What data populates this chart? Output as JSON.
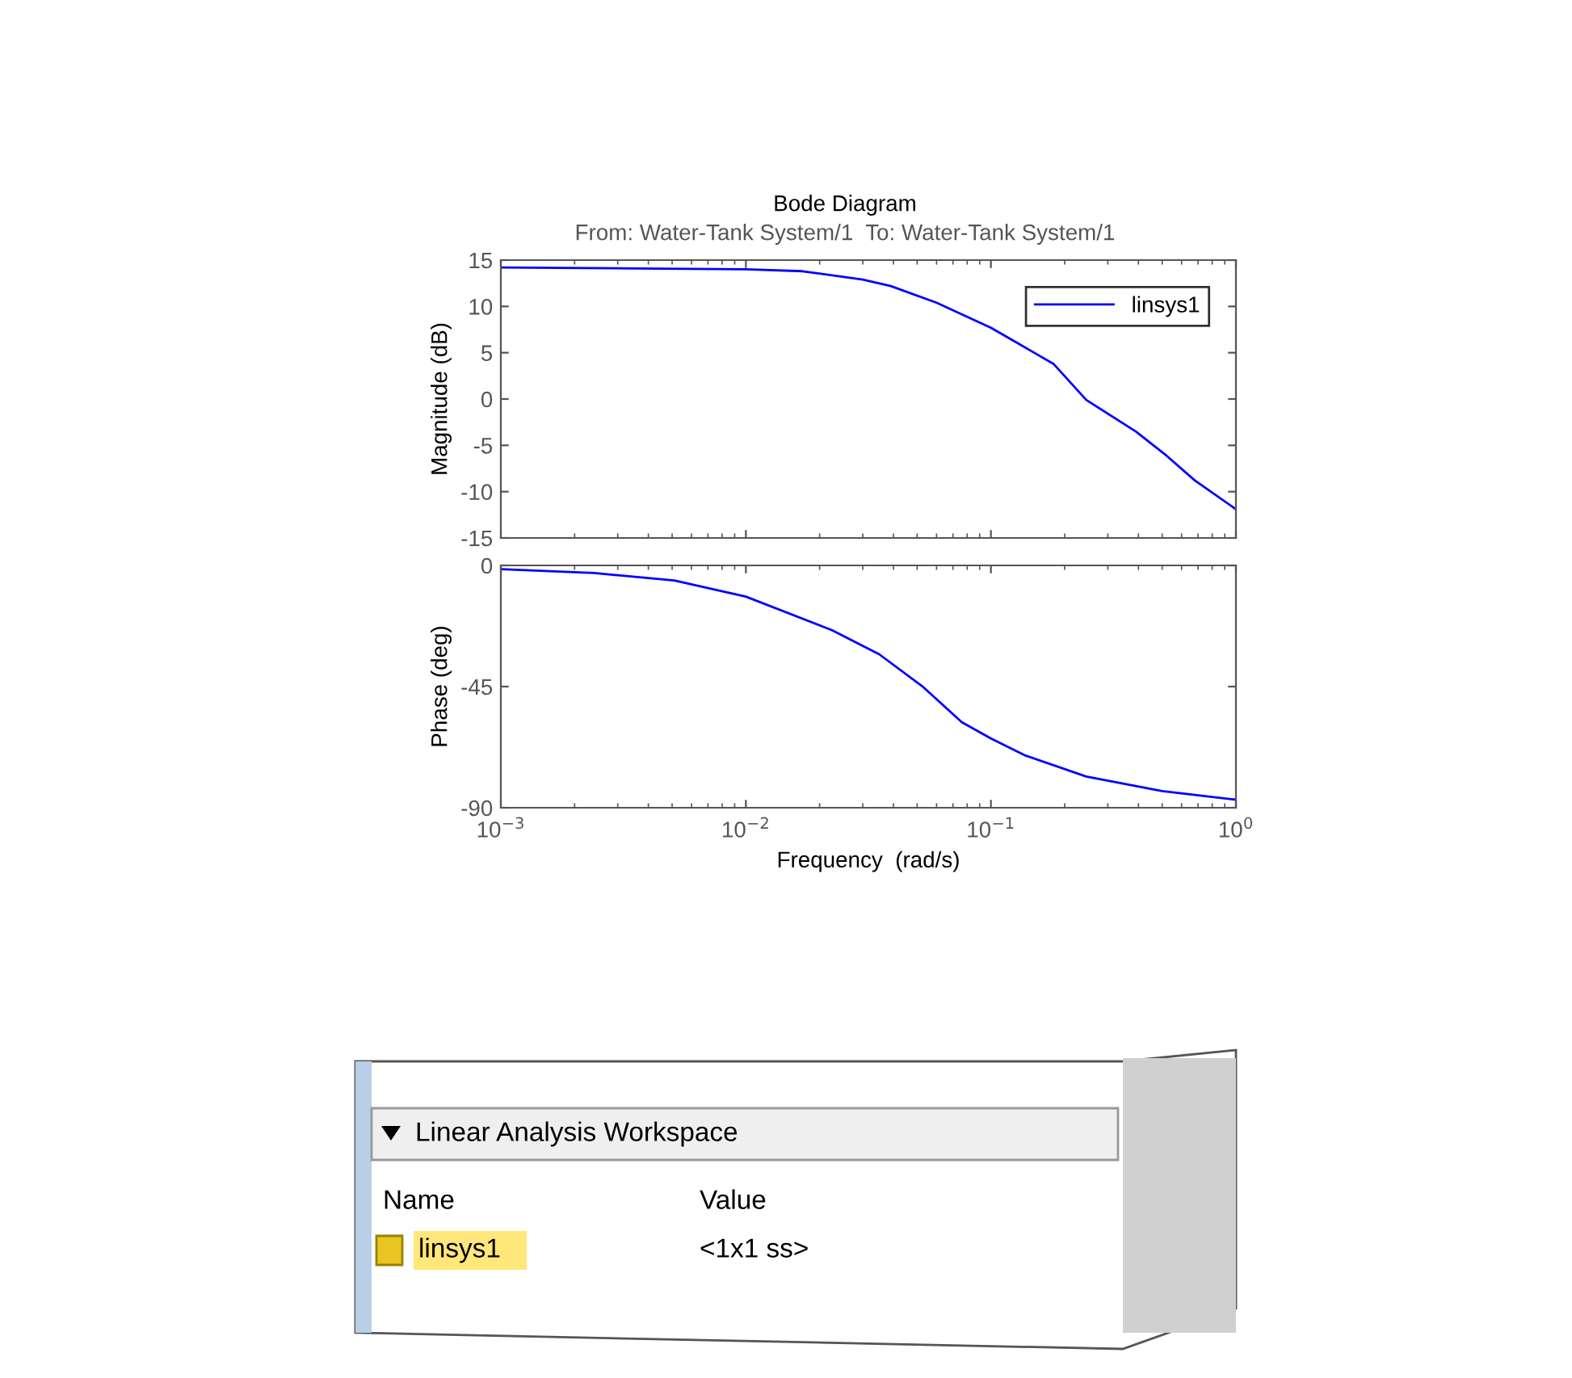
{
  "chart_data": [
    {
      "type": "line",
      "title": "Bode Diagram",
      "subtitle": "From: Water-Tank System/1  To: Water-Tank System/1",
      "ylabel": "Magnitude (dB)",
      "log": "x",
      "xlim": [
        0.001,
        1
      ],
      "xticks": [
        {
          "value": 0.001,
          "label": null
        },
        {
          "value": 0.01,
          "label": null
        },
        {
          "value": 0.1,
          "label": null
        },
        {
          "value": 1,
          "label": null
        }
      ],
      "ylim": [
        -15,
        15
      ],
      "yticks": [
        -15,
        -10,
        -5,
        0,
        5,
        10,
        15
      ],
      "tick_labels": "y",
      "grid": false,
      "legend": "top right",
      "line_style": "solid",
      "series": [
        {
          "name": "linsys1",
          "color": "#0000ff",
          "x": [
            0.001,
            0.00355,
            0.01,
            0.017,
            0.03,
            0.039,
            0.06,
            0.1,
            0.18,
            0.245,
            0.39,
            0.52,
            0.68,
            1
          ],
          "values": [
            14.2,
            14.1,
            14.0,
            13.8,
            12.9,
            12.2,
            10.4,
            7.7,
            3.8,
            -0.1,
            -3.5,
            -6.1,
            -8.8,
            -11.9
          ]
        }
      ]
    },
    {
      "type": "line",
      "xlabel": "Frequency  (rad/s)",
      "ylabel": "Phase (deg)",
      "log": "x",
      "xlim": [
        0.001,
        1
      ],
      "xticks": [
        {
          "value": 0.001,
          "label": "10$^{−3}$"
        },
        {
          "value": 0.01,
          "label": "10$^{−2}$"
        },
        {
          "value": 0.1,
          "label": "10$^{−1}$"
        },
        {
          "value": 1,
          "label": "10$^{0}$"
        }
      ],
      "ylim": [
        -90,
        0
      ],
      "yticks": [
        -90,
        -45,
        0
      ],
      "grid": false,
      "line_style": "solid",
      "series": [
        {
          "color": "#0000ff",
          "x": [
            0.001,
            0.0024,
            0.0051,
            0.01,
            0.0224,
            0.035,
            0.053,
            0.076,
            0.1,
            0.139,
            0.245,
            0.5,
            1
          ],
          "values": [
            -1.4,
            -2.8,
            -5.6,
            -11.6,
            -24,
            -33,
            -45.2,
            -58.2,
            -64.3,
            -70.7,
            -78.4,
            -83.8,
            -87
          ]
        }
      ]
    },
    {
      "type": "other",
      "title": "Linear Analysis Workspace",
      "annotations": [
        "Name",
        "Value",
        "linsys1",
        "<1x1 ss>"
      ]
    }
  ]
}
